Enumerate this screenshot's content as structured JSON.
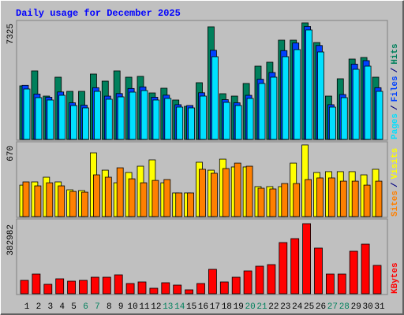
{
  "title": "Daily usage for December 2025",
  "chart_data": [
    {
      "type": "bar",
      "legend_separator": "/",
      "series": [
        {
          "name": "Hits",
          "color": "#00805c",
          "values": [
            3366,
            4306,
            2722,
            3910,
            3019,
            3019,
            4108,
            3663,
            4306,
            3910,
            3960,
            2920,
            3217,
            2475,
            2079,
            3564,
            7077,
            2871,
            2722,
            3514,
            4603,
            4851,
            6237,
            6237,
            7325,
            6088,
            2722,
            3811,
            5049,
            5148,
            3910
          ]
        },
        {
          "name": "Files",
          "color": "#0040ff",
          "values": [
            3400,
            2850,
            2650,
            2980,
            2300,
            2150,
            3250,
            2720,
            2880,
            3200,
            3300,
            2650,
            2780,
            2180,
            2130,
            2930,
            5600,
            2500,
            2300,
            2770,
            3780,
            4200,
            5580,
            6060,
            7100,
            5900,
            2180,
            2820,
            4730,
            4950,
            3250
          ]
        },
        {
          "name": "Pages",
          "color": "#00e0ff",
          "values": [
            3168,
            2623,
            2475,
            2772,
            2128,
            1980,
            3019,
            2524,
            2673,
            2970,
            3069,
            2475,
            2574,
            2029,
            1980,
            2722,
            5197,
            2326,
            2128,
            2574,
            3514,
            3910,
            5197,
            5643,
            6880,
            5494,
            2029,
            2623,
            4405,
            4603,
            3019
          ]
        }
      ],
      "ylim": [
        0,
        7325
      ],
      "yticks": [
        7325
      ]
    },
    {
      "type": "bar",
      "legend_separator": "/",
      "series": [
        {
          "name": "Visits",
          "color": "#ffff00",
          "values": [
            294,
            324,
            368,
            324,
            250,
            243,
            596,
            434,
            316,
            412,
            471,
            530,
            316,
            221,
            221,
            508,
            434,
            537,
            464,
            464,
            280,
            280,
            280,
            500,
            670,
            412,
            420,
            420,
            420,
            390,
            442
          ]
        },
        {
          "name": "Sites",
          "color": "#ff8000",
          "values": [
            324,
            287,
            316,
            287,
            235,
            228,
            390,
            368,
            456,
            353,
            316,
            338,
            346,
            221,
            221,
            442,
            405,
            449,
            500,
            471,
            265,
            258,
            309,
            309,
            346,
            361,
            361,
            331,
            331,
            294,
            331
          ]
        }
      ],
      "ylim": [
        0,
        670
      ],
      "yticks": [
        670
      ]
    },
    {
      "type": "bar",
      "categories": [
        "1",
        "2",
        "3",
        "4",
        "5",
        "6",
        "7",
        "8",
        "9",
        "10",
        "11",
        "12",
        "13",
        "14",
        "15",
        "16",
        "17",
        "18",
        "19",
        "20",
        "21",
        "22",
        "23",
        "24",
        "25",
        "26",
        "27",
        "28",
        "29",
        "30",
        "31"
      ],
      "category_colors": [
        "#000000",
        "#000000",
        "#000000",
        "#000000",
        "#000000",
        "#00805c",
        "#00805c",
        "#000000",
        "#000000",
        "#000000",
        "#000000",
        "#000000",
        "#00805c",
        "#00805c",
        "#000000",
        "#000000",
        "#000000",
        "#000000",
        "#000000",
        "#00805c",
        "#00805c",
        "#000000",
        "#000000",
        "#000000",
        "#000000",
        "#000000",
        "#00805c",
        "#00805c",
        "#000000",
        "#000000",
        "#000000"
      ],
      "series": [
        {
          "name": "KBytes",
          "color": "#ff0000",
          "values": [
            73156,
            107578,
            51640,
            81761,
            68851,
            73156,
            90366,
            90366,
            103276,
            55942,
            64546,
            30123,
            60244,
            47334,
            21516,
            55942,
            133398,
            64546,
            90366,
            124792,
            150610,
            159216,
            279708,
            301224,
            382982,
            249586,
            107578,
            107578,
            232372,
            271100,
            154914
          ]
        }
      ],
      "ylim": [
        0,
        382982
      ],
      "yticks": [
        382982
      ]
    }
  ]
}
